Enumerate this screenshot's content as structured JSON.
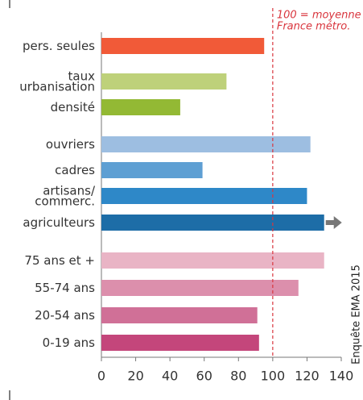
{
  "chart_data": {
    "type": "bar",
    "orientation": "horizontal",
    "categories": [
      [
        "pers. seules"
      ],
      [
        "taux",
        "urbanisation"
      ],
      [
        "densité"
      ],
      [
        "ouvriers"
      ],
      [
        "cadres"
      ],
      [
        "artisans/",
        "commerc."
      ],
      [
        "agriculteurs"
      ],
      [
        "75 ans et +"
      ],
      [
        "55-74 ans"
      ],
      [
        "20-54 ans"
      ],
      [
        "0-19 ans"
      ]
    ],
    "values": [
      95,
      73,
      46,
      122,
      59,
      120,
      130,
      130,
      115,
      91,
      92
    ],
    "colors": [
      "#f15a38",
      "#bed17a",
      "#93b934",
      "#9dbee1",
      "#5e9fd3",
      "#2e88c8",
      "#1d6da7",
      "#e9b4c5",
      "#dc8fac",
      "#d07097",
      "#c4467b"
    ],
    "xlim": [
      0,
      140
    ],
    "xticks": [
      0,
      20,
      40,
      60,
      80,
      100,
      120,
      140
    ],
    "reference_line": {
      "value": 100,
      "color": "#d9363e",
      "label": [
        "100 = moyenne",
        "France métro."
      ]
    },
    "source": "Enquête EMA 2015"
  }
}
